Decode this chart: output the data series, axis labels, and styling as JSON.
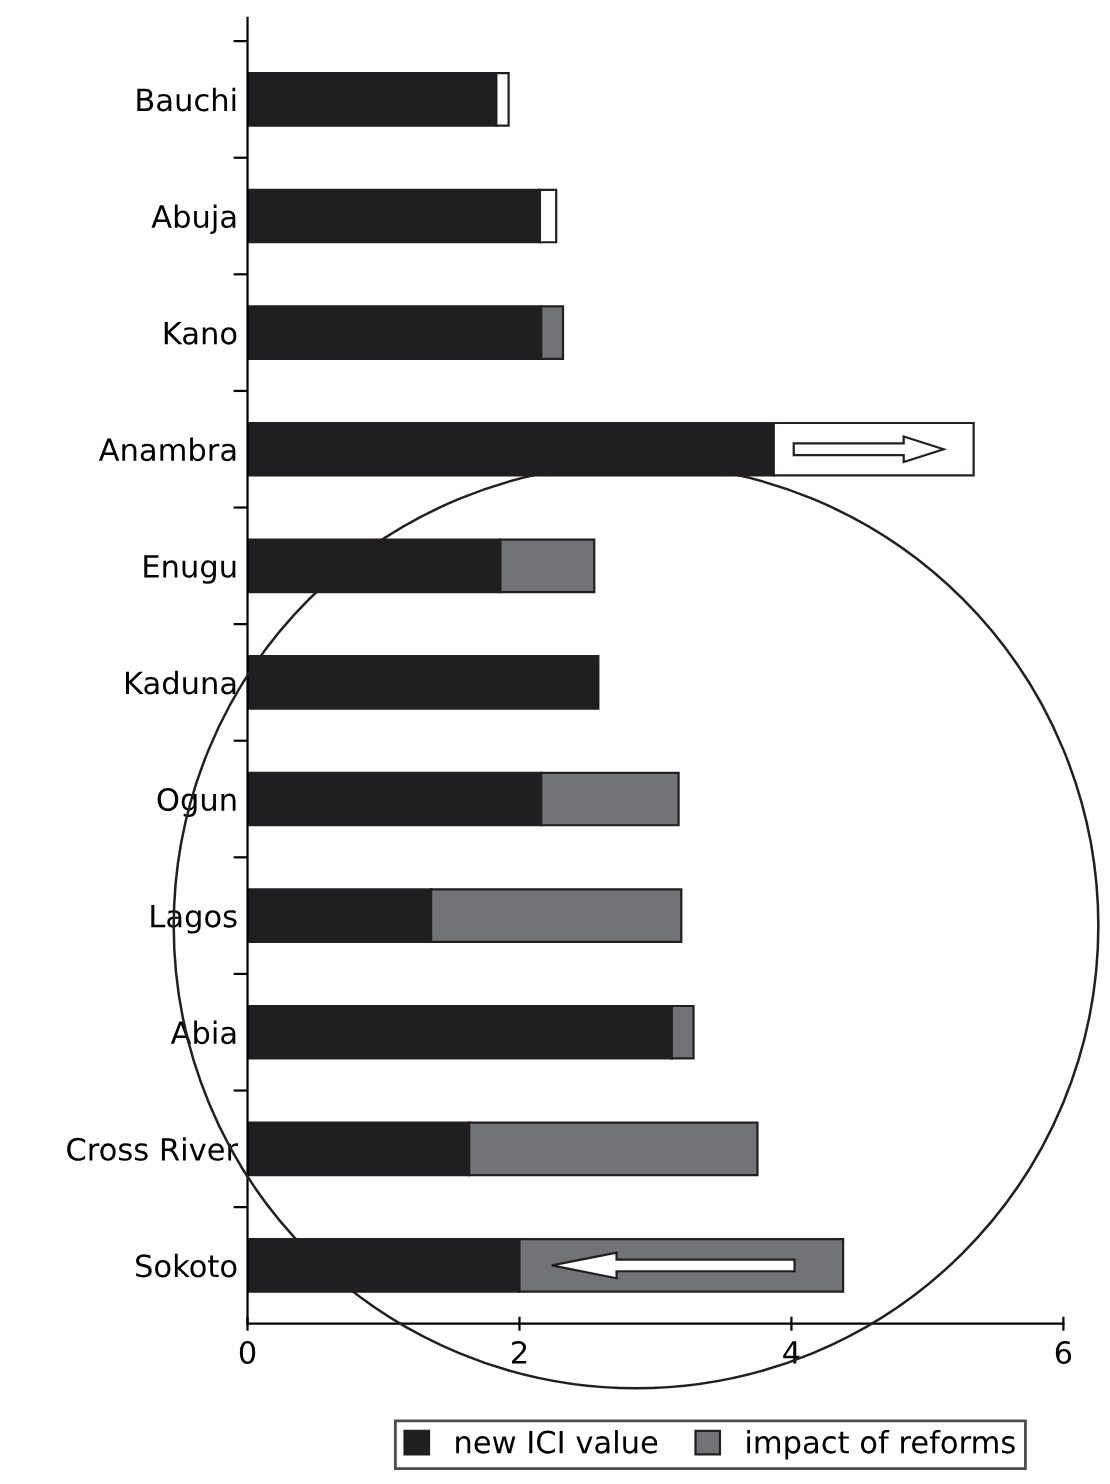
{
  "chart_data": {
    "type": "bar",
    "orientation": "horizontal",
    "stacked": true,
    "categories": [
      "Bauchi",
      "Abuja",
      "Kano",
      "Anambra",
      "Enugu",
      "Kaduna",
      "Ogun",
      "Lagos",
      "Abia",
      "Cross River",
      "Sokoto"
    ],
    "series": [
      {
        "name": "new ICI value",
        "color": "#1f1f22",
        "values": [
          1.83,
          2.15,
          2.16,
          3.87,
          1.86,
          2.58,
          2.16,
          1.35,
          3.12,
          1.63,
          2.0
        ]
      },
      {
        "name": "impact of reforms",
        "color": "#727376",
        "colors": [
          "#ffffff",
          "#ffffff",
          "#727376",
          "#ffffff",
          "#727376",
          "#727376",
          "#727376",
          "#727376",
          "#727376",
          "#727376",
          "#727376"
        ],
        "values": [
          0.09,
          0.12,
          0.16,
          1.47,
          0.69,
          null,
          1.01,
          1.84,
          0.16,
          2.12,
          2.38
        ]
      }
    ],
    "xlim": [
      0,
      6
    ],
    "xticks": [
      0,
      2,
      4,
      6
    ],
    "grid": false,
    "legend": "bottom"
  }
}
